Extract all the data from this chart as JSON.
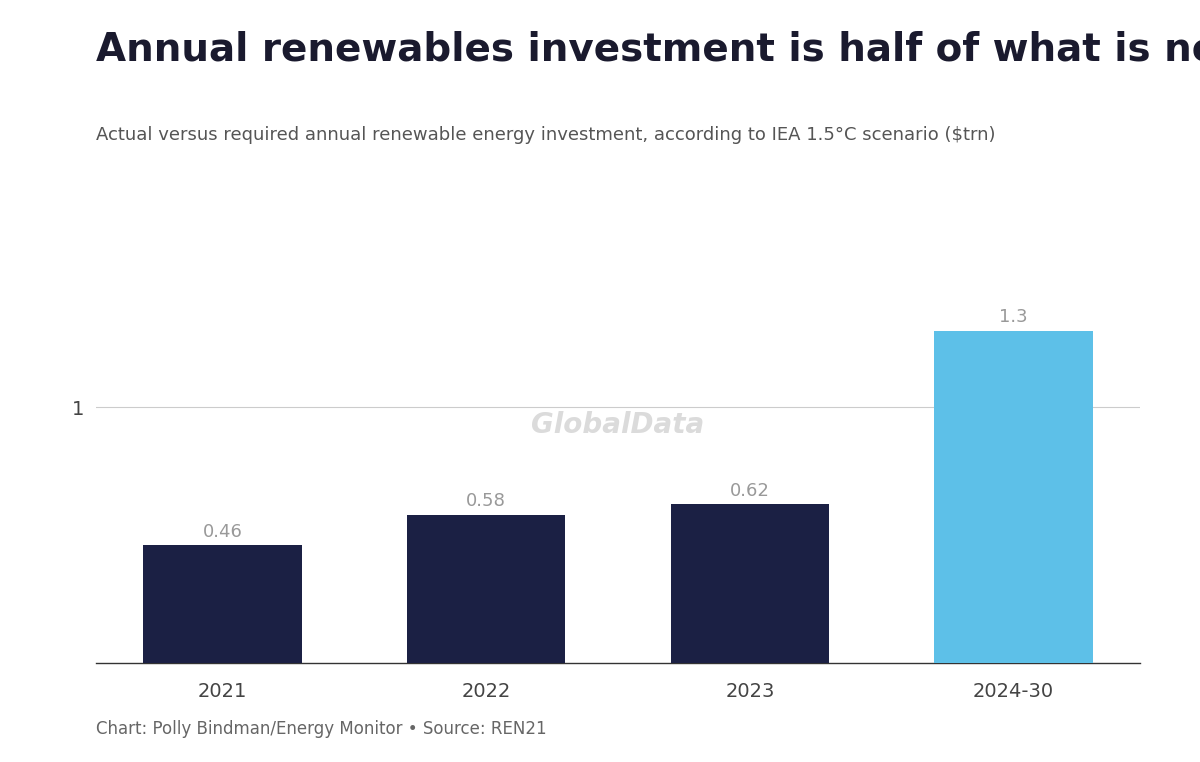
{
  "title": "Annual renewables investment is half of what is needed for net zero",
  "subtitle": "Actual versus required annual renewable energy investment, according to IEA 1.5°C scenario ($trn)",
  "categories": [
    "2021",
    "2022",
    "2023",
    "2024-30"
  ],
  "values": [
    0.46,
    0.58,
    0.62,
    1.3
  ],
  "bar_colors": [
    "#1b2044",
    "#1b2044",
    "#1b2044",
    "#5dc0e8"
  ],
  "label_values": [
    "0.46",
    "0.58",
    "0.62",
    "1.3"
  ],
  "ytick_value": 1,
  "ytick_label": "1",
  "footer": "Chart: Polly Bindman/Energy Monitor • Source: REN21",
  "watermark": "GlobalData",
  "background_color": "#ffffff",
  "title_fontsize": 28,
  "subtitle_fontsize": 13,
  "footer_fontsize": 12,
  "bar_label_fontsize": 13,
  "ytick_fontsize": 14,
  "xtick_fontsize": 14,
  "ylim_max": 1.55
}
